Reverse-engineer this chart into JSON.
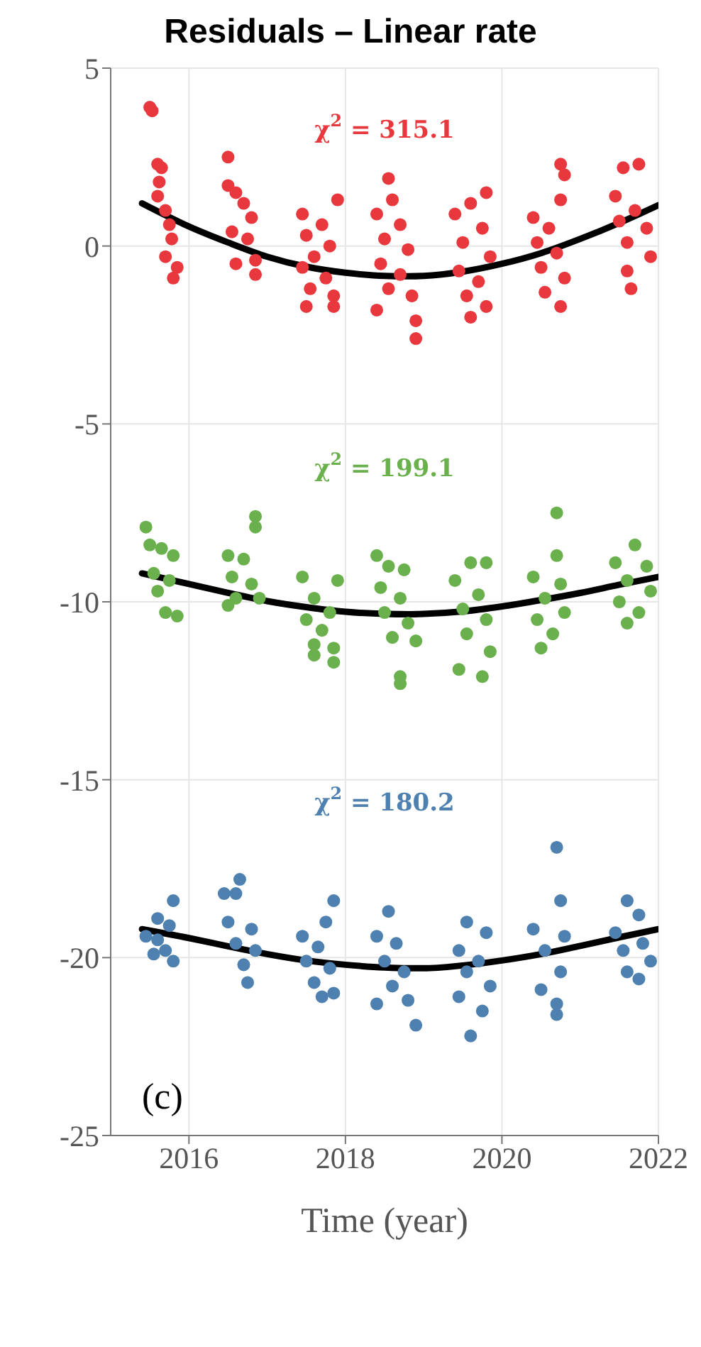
{
  "chart_data": {
    "type": "scatter",
    "title": "Residuals – Linear rate",
    "xlabel": "Time (year)",
    "xlim": [
      2015,
      2022
    ],
    "xticks": [
      2016,
      2018,
      2020,
      2022
    ],
    "ylim": [
      -25,
      5
    ],
    "yticks": [
      -25,
      -20,
      -15,
      -10,
      -5,
      0,
      5
    ],
    "grid": true,
    "marker": "circle",
    "series": [
      {
        "color": "#e8383d",
        "x": [
          2015.5,
          2015.53,
          2015.6,
          2015.65,
          2015.62,
          2015.6,
          2015.7,
          2015.75,
          2015.78,
          2015.7,
          2015.85,
          2015.8,
          2016.5,
          2016.5,
          2016.6,
          2016.7,
          2016.8,
          2016.55,
          2016.75,
          2016.6,
          2016.85,
          2016.85,
          2017.9,
          2017.45,
          2017.7,
          2017.5,
          2017.8,
          2017.6,
          2017.45,
          2017.75,
          2017.55,
          2017.85,
          2017.5,
          2017.85,
          2018.55,
          2018.6,
          2018.4,
          2018.7,
          2018.5,
          2018.8,
          2018.45,
          2018.7,
          2018.55,
          2018.85,
          2018.4,
          2018.9,
          2018.9,
          2019.8,
          2019.6,
          2019.4,
          2019.75,
          2019.5,
          2019.85,
          2019.45,
          2019.7,
          2019.55,
          2019.8,
          2019.6,
          2020.75,
          2020.8,
          2020.75,
          2020.4,
          2020.6,
          2020.45,
          2020.7,
          2020.5,
          2020.8,
          2020.55,
          2020.75,
          2021.55,
          2021.75,
          2021.45,
          2021.7,
          2021.5,
          2021.85,
          2021.6,
          2021.9,
          2021.6,
          2021.65
        ],
        "values": [
          3.9,
          3.8,
          2.3,
          2.2,
          1.8,
          1.4,
          1.0,
          0.6,
          0.2,
          -0.3,
          -0.6,
          -0.9,
          2.5,
          1.7,
          1.5,
          1.2,
          0.8,
          0.4,
          0.2,
          -0.5,
          -0.4,
          -0.8,
          1.3,
          0.9,
          0.6,
          0.3,
          0.0,
          -0.3,
          -0.6,
          -0.9,
          -1.2,
          -1.4,
          -1.7,
          -1.7,
          1.9,
          1.3,
          0.9,
          0.6,
          0.2,
          -0.1,
          -0.5,
          -0.8,
          -1.2,
          -1.4,
          -1.8,
          -2.1,
          -2.6,
          1.5,
          1.2,
          0.9,
          0.5,
          0.1,
          -0.3,
          -0.7,
          -1.0,
          -1.4,
          -1.7,
          -2.0,
          2.3,
          2.0,
          1.3,
          0.8,
          0.5,
          0.1,
          -0.2,
          -0.6,
          -0.9,
          -1.3,
          -1.7,
          2.2,
          2.3,
          1.4,
          1.0,
          0.7,
          0.5,
          0.1,
          -0.3,
          -0.7,
          -1.2
        ]
      },
      {
        "color": "#6ab04c",
        "x": [
          2015.45,
          2015.5,
          2015.65,
          2015.8,
          2015.55,
          2015.75,
          2015.6,
          2015.7,
          2015.85,
          2016.85,
          2016.85,
          2016.5,
          2016.7,
          2016.55,
          2016.8,
          2016.6,
          2016.5,
          2016.9,
          2017.45,
          2017.9,
          2017.6,
          2017.8,
          2017.5,
          2017.7,
          2017.6,
          2017.85,
          2017.6,
          2017.85,
          2018.4,
          2018.55,
          2018.75,
          2018.45,
          2018.7,
          2018.5,
          2018.8,
          2018.6,
          2018.9,
          2018.7,
          2018.7,
          2019.6,
          2019.8,
          2019.4,
          2019.7,
          2019.5,
          2019.8,
          2019.55,
          2019.85,
          2019.45,
          2019.75,
          2020.7,
          2020.7,
          2020.4,
          2020.75,
          2020.55,
          2020.8,
          2020.45,
          2020.65,
          2020.5,
          2021.7,
          2021.45,
          2021.85,
          2021.6,
          2021.9,
          2021.5,
          2021.75,
          2021.6
        ],
        "values": [
          -7.9,
          -8.4,
          -8.5,
          -8.7,
          -9.2,
          -9.4,
          -9.7,
          -10.3,
          -10.4,
          -7.6,
          -7.9,
          -8.7,
          -8.8,
          -9.3,
          -9.5,
          -9.9,
          -10.1,
          -9.9,
          -9.3,
          -9.4,
          -9.9,
          -10.3,
          -10.5,
          -10.8,
          -11.2,
          -11.3,
          -11.5,
          -11.7,
          -8.7,
          -9.0,
          -9.1,
          -9.6,
          -9.9,
          -10.3,
          -10.6,
          -11.0,
          -11.1,
          -12.1,
          -12.3,
          -8.9,
          -8.9,
          -9.4,
          -9.8,
          -10.2,
          -10.5,
          -10.9,
          -11.4,
          -11.9,
          -12.1,
          -7.5,
          -8.7,
          -9.3,
          -9.5,
          -9.9,
          -10.3,
          -10.5,
          -10.9,
          -11.3,
          -8.4,
          -8.9,
          -9.0,
          -9.4,
          -9.7,
          -10.0,
          -10.3,
          -10.6
        ]
      },
      {
        "color": "#4f81b0",
        "x": [
          2015.8,
          2015.6,
          2015.75,
          2015.45,
          2015.6,
          2015.7,
          2015.8,
          2015.55,
          2016.45,
          2016.65,
          2016.6,
          2016.5,
          2016.8,
          2016.6,
          2016.85,
          2016.7,
          2016.75,
          2017.85,
          2017.75,
          2017.45,
          2017.65,
          2017.5,
          2017.8,
          2017.6,
          2017.85,
          2017.7,
          2018.55,
          2018.4,
          2018.65,
          2018.5,
          2018.75,
          2018.6,
          2018.4,
          2018.8,
          2018.9,
          2019.55,
          2019.8,
          2019.45,
          2019.7,
          2019.55,
          2019.85,
          2019.45,
          2019.75,
          2019.6,
          2020.7,
          2020.75,
          2020.4,
          2020.8,
          2020.55,
          2020.75,
          2020.5,
          2020.7,
          2020.7,
          2021.6,
          2021.75,
          2021.45,
          2021.8,
          2021.55,
          2021.9,
          2021.6,
          2021.75
        ],
        "values": [
          -18.4,
          -18.9,
          -19.1,
          -19.4,
          -19.5,
          -19.8,
          -20.1,
          -19.9,
          -18.2,
          -17.8,
          -18.2,
          -19.0,
          -19.2,
          -19.6,
          -19.8,
          -20.2,
          -20.7,
          -18.4,
          -19.0,
          -19.4,
          -19.7,
          -20.1,
          -20.3,
          -20.7,
          -21.0,
          -21.1,
          -18.7,
          -19.4,
          -19.6,
          -20.1,
          -20.4,
          -20.8,
          -21.3,
          -21.2,
          -21.9,
          -19.0,
          -19.3,
          -19.8,
          -20.1,
          -20.4,
          -20.8,
          -21.1,
          -21.5,
          -22.2,
          -16.9,
          -18.4,
          -19.2,
          -19.4,
          -19.8,
          -20.4,
          -20.9,
          -21.3,
          -21.6,
          -18.4,
          -18.8,
          -19.3,
          -19.6,
          -19.8,
          -20.1,
          -20.4,
          -20.6
        ]
      },
      {
        "type": "line",
        "color": "#000000",
        "marker": "none",
        "x": [
          2015.4,
          2016,
          2016.5,
          2017,
          2017.5,
          2018,
          2018.5,
          2018.8,
          2019,
          2019.5,
          2020,
          2020.5,
          2021,
          2021.5,
          2022
        ],
        "values": [
          1.2,
          0.55,
          0.1,
          -0.3,
          -0.58,
          -0.75,
          -0.84,
          -0.85,
          -0.84,
          -0.72,
          -0.5,
          -0.2,
          0.2,
          0.65,
          1.15
        ]
      },
      {
        "type": "line",
        "color": "#000000",
        "marker": "none",
        "x": [
          2015.4,
          2016,
          2016.5,
          2017,
          2017.5,
          2018,
          2018.5,
          2018.8,
          2019,
          2019.5,
          2020,
          2020.5,
          2021,
          2021.5,
          2022
        ],
        "values": [
          -9.2,
          -9.5,
          -9.75,
          -9.98,
          -10.15,
          -10.28,
          -10.34,
          -10.35,
          -10.34,
          -10.27,
          -10.13,
          -9.95,
          -9.75,
          -9.52,
          -9.3
        ]
      },
      {
        "type": "line",
        "color": "#000000",
        "marker": "none",
        "x": [
          2015.4,
          2016,
          2016.5,
          2017,
          2017.5,
          2018,
          2018.5,
          2018.8,
          2019,
          2019.5,
          2020,
          2020.5,
          2021,
          2021.5,
          2022
        ],
        "values": [
          -19.2,
          -19.45,
          -19.68,
          -19.9,
          -20.08,
          -20.2,
          -20.28,
          -20.3,
          -20.3,
          -20.22,
          -20.08,
          -19.9,
          -19.67,
          -19.43,
          -19.2
        ]
      }
    ],
    "annotations": [
      "χ$^{2}$ = 315.1",
      "χ$^{2}$ = 199.1",
      "χ$^{2}$ = 180.2",
      "(c)"
    ]
  }
}
